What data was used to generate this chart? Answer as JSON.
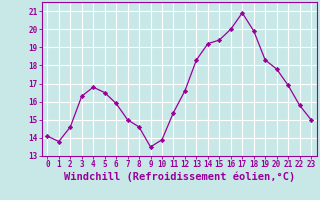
{
  "x": [
    0,
    1,
    2,
    3,
    4,
    5,
    6,
    7,
    8,
    9,
    10,
    11,
    12,
    13,
    14,
    15,
    16,
    17,
    18,
    19,
    20,
    21,
    22,
    23
  ],
  "y": [
    14.1,
    13.8,
    14.6,
    16.3,
    16.8,
    16.5,
    15.9,
    15.0,
    14.6,
    13.5,
    13.9,
    15.4,
    16.6,
    18.3,
    19.2,
    19.4,
    20.0,
    20.9,
    19.9,
    18.3,
    17.8,
    16.9,
    15.8,
    15.0
  ],
  "line_color": "#990099",
  "marker": "D",
  "marker_size": 2.2,
  "bg_color": "#c8e8e8",
  "grid_color": "#ffffff",
  "ylabel_ticks": [
    13,
    14,
    15,
    16,
    17,
    18,
    19,
    20,
    21
  ],
  "xlabel": "Windchill (Refroidissement éolien,°C)",
  "xlim": [
    -0.5,
    23.5
  ],
  "ylim": [
    13,
    21.5
  ],
  "tick_color": "#990099",
  "label_color": "#990099",
  "xlabel_fontsize": 7.5,
  "tick_fontsize": 5.5
}
